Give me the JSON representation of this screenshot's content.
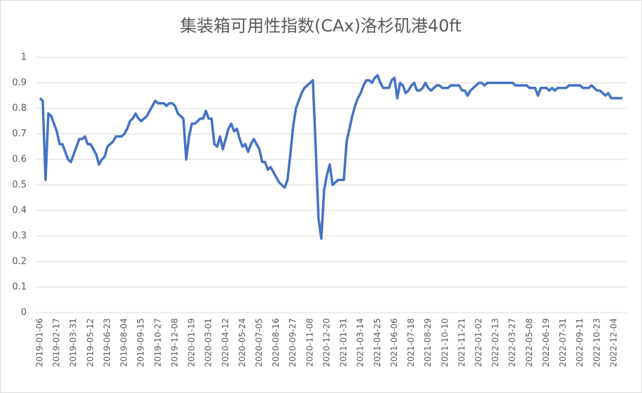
{
  "chart_data": {
    "type": "line",
    "title": "集装箱可用性指数(CAx)洛杉矶港40ft",
    "categories": [
      "2019-01-06",
      null,
      null,
      null,
      null,
      null,
      "2019-02-17",
      null,
      null,
      null,
      null,
      null,
      "2019-03-31",
      null,
      null,
      null,
      null,
      null,
      "2019-05-12",
      null,
      null,
      null,
      null,
      null,
      "2019-06-23",
      null,
      null,
      null,
      null,
      null,
      "2019-08-04",
      null,
      null,
      null,
      null,
      null,
      "2019-09-15",
      null,
      null,
      null,
      null,
      null,
      "2019-10-27",
      null,
      null,
      null,
      null,
      null,
      "2019-12-08",
      null,
      null,
      null,
      null,
      null,
      "2020-01-19",
      null,
      null,
      null,
      null,
      null,
      "2020-03-01",
      null,
      null,
      null,
      null,
      null,
      "2020-04-12",
      null,
      null,
      null,
      null,
      null,
      "2020-05-24",
      null,
      null,
      null,
      null,
      null,
      "2020-07-05",
      null,
      null,
      null,
      null,
      null,
      "2020-08-16",
      null,
      null,
      null,
      null,
      null,
      "2020-09-27",
      null,
      null,
      null,
      null,
      null,
      "2020-11-08",
      null,
      null,
      null,
      null,
      null,
      "2020-12-20",
      null,
      null,
      null,
      null,
      null,
      "2021-01-31",
      null,
      null,
      null,
      null,
      null,
      "2021-03-14",
      null,
      null,
      null,
      null,
      null,
      "2021-04-25",
      null,
      null,
      null,
      null,
      null,
      "2021-06-06",
      null,
      null,
      null,
      null,
      null,
      "2021-07-18",
      null,
      null,
      null,
      null,
      null,
      "2021-08-29",
      null,
      null,
      null,
      null,
      null,
      "2021-10-10",
      null,
      null,
      null,
      null,
      null,
      "2021-11-21",
      null,
      null,
      null,
      null,
      null,
      "2022-01-02",
      null,
      null,
      null,
      null,
      null,
      "2022-02-13",
      null,
      null,
      null,
      null,
      null,
      "2022-03-27",
      null,
      null,
      null,
      null,
      null,
      "2022-05-08",
      null,
      null,
      null,
      null,
      null,
      "2022-06-19",
      null,
      null,
      null,
      null,
      null,
      "2022-07-31",
      null,
      null,
      null,
      null,
      null,
      "2022-09-11",
      null,
      null,
      null,
      null,
      null,
      "2022-10-23",
      null,
      null,
      null,
      null,
      null,
      "2022-12-04",
      null,
      null,
      null
    ],
    "series": [
      {
        "name": "洛杉矶港40ft",
        "color": "#4472c4",
        "values": [
          0.84,
          0.83,
          0.52,
          0.78,
          0.77,
          0.74,
          0.71,
          0.66,
          0.66,
          0.63,
          0.6,
          0.59,
          0.62,
          0.65,
          0.68,
          0.68,
          0.69,
          0.66,
          0.66,
          0.64,
          0.62,
          0.58,
          0.6,
          0.61,
          0.65,
          0.66,
          0.67,
          0.69,
          0.69,
          0.69,
          0.7,
          0.72,
          0.75,
          0.76,
          0.78,
          0.76,
          0.75,
          0.76,
          0.77,
          0.79,
          0.81,
          0.83,
          0.82,
          0.82,
          0.82,
          0.81,
          0.82,
          0.82,
          0.81,
          0.78,
          0.77,
          0.76,
          0.6,
          0.69,
          0.74,
          0.74,
          0.75,
          0.76,
          0.76,
          0.79,
          0.76,
          0.76,
          0.66,
          0.65,
          0.69,
          0.64,
          0.68,
          0.72,
          0.74,
          0.71,
          0.72,
          0.68,
          0.65,
          0.66,
          0.63,
          0.66,
          0.68,
          0.66,
          0.64,
          0.59,
          0.59,
          0.56,
          0.57,
          0.55,
          0.53,
          0.51,
          0.5,
          0.49,
          0.52,
          0.62,
          0.73,
          0.8,
          0.83,
          0.86,
          0.88,
          0.89,
          0.9,
          0.91,
          0.65,
          0.37,
          0.29,
          0.48,
          0.54,
          0.58,
          0.5,
          0.51,
          0.52,
          0.52,
          0.52,
          0.67,
          0.72,
          0.77,
          0.81,
          0.84,
          0.86,
          0.89,
          0.91,
          0.91,
          0.9,
          0.92,
          0.93,
          0.9,
          0.88,
          0.88,
          0.88,
          0.91,
          0.92,
          0.84,
          0.9,
          0.89,
          0.86,
          0.87,
          0.89,
          0.9,
          0.87,
          0.87,
          0.88,
          0.9,
          0.88,
          0.87,
          0.88,
          0.89,
          0.89,
          0.88,
          0.88,
          0.88,
          0.89,
          0.89,
          0.89,
          0.89,
          0.87,
          0.87,
          0.85,
          0.87,
          0.88,
          0.89,
          0.9,
          0.9,
          0.89,
          0.9,
          0.9,
          0.9,
          0.9,
          0.9,
          0.9,
          0.9,
          0.9,
          0.9,
          0.9,
          0.89,
          0.89,
          0.89,
          0.89,
          0.89,
          0.88,
          0.88,
          0.88,
          0.85,
          0.88,
          0.88,
          0.88,
          0.87,
          0.88,
          0.87,
          0.88,
          0.88,
          0.88,
          0.88,
          0.89,
          0.89,
          0.89,
          0.89,
          0.89,
          0.88,
          0.88,
          0.88,
          0.89,
          0.88,
          0.87,
          0.87,
          0.86,
          0.85,
          0.86,
          0.84,
          0.84,
          0.84,
          0.84,
          0.84
        ]
      }
    ],
    "ylim": [
      0,
      1
    ],
    "yticks": [
      0,
      0.1,
      0.2,
      0.3,
      0.4,
      0.5,
      0.6,
      0.7,
      0.8,
      0.9,
      1
    ],
    "grid": true
  }
}
